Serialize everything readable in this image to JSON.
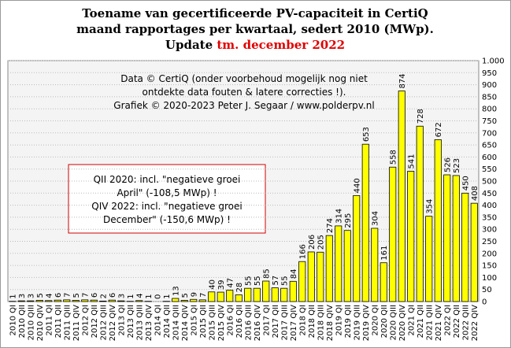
{
  "chart_data": {
    "type": "bar",
    "title": [
      "Toename van gecertificeerde PV-capaciteit in CertiQ",
      "maand rapportages per kwartaal, sedert 2010 (MWp)."
    ],
    "title_update": "Update",
    "title_highlight": "tm. december 2022",
    "info": [
      "Data © CertiQ (onder voorbehoud mogelijk nog niet",
      "ontdekte data fouten & latere correcties !).",
      "Grafiek © 2020-2023 Peter J. Segaar / www.polderpv.nl"
    ],
    "annotation": [
      "QII 2020: incl. \"negatieve groei",
      "April\" (-108,5 MWp) !",
      "QIV 2022: incl. \"negatieve groei",
      "December\" (-150,6 MWp) !"
    ],
    "categories": [
      "2010 QI",
      "2010 QII",
      "2010 QIII",
      "2010 QIV",
      "2011 QI",
      "2011 QII",
      "2011 QIII",
      "2011 QIV",
      "2012 QI",
      "2012 QII",
      "2012 QIII",
      "2012 QIV",
      "2013 QI",
      "2013 QII",
      "2013 QIII",
      "2013 QIV",
      "2014 QI",
      "2014 QII",
      "2014 QIII",
      "2014 QIV",
      "2015 QI",
      "2015 QII",
      "2015 QIII",
      "2015 QIV",
      "2016 QI",
      "2016 QII",
      "2016 QIII",
      "2016 QIV",
      "2017 QI",
      "2017 QII",
      "2017 QIII",
      "2017 QIV",
      "2018 QI",
      "2018 QII",
      "2018 QIII",
      "2018 QIV",
      "2019 QI",
      "2019 QII",
      "2019 QIII",
      "2019 QIV",
      "2020 QI",
      "2020 QII",
      "2020 QIII",
      "2020 QIV",
      "2021 QI",
      "2021 QII",
      "2021 QIII",
      "2021 QIV",
      "2022 QI",
      "2022 QII",
      "2022 QIII",
      "2022 QIV"
    ],
    "values": [
      1,
      3,
      3,
      5,
      4,
      6,
      7,
      5,
      7,
      6,
      2,
      6,
      3,
      1,
      4,
      1,
      0,
      1,
      13,
      5,
      9,
      7,
      40,
      39,
      47,
      28,
      55,
      55,
      85,
      57,
      55,
      84,
      166,
      206,
      205,
      274,
      314,
      295,
      440,
      653,
      304,
      161,
      558,
      874,
      541,
      728,
      354,
      672,
      526,
      523,
      450,
      408
    ],
    "color": "#ffff00",
    "ylim": [
      0,
      1000
    ],
    "yticks": [
      0,
      50,
      100,
      150,
      200,
      250,
      300,
      350,
      400,
      450,
      500,
      550,
      600,
      650,
      700,
      750,
      800,
      850,
      900,
      950,
      {
        "value": 1000,
        "label": "1.000"
      }
    ],
    "grid": true
  }
}
